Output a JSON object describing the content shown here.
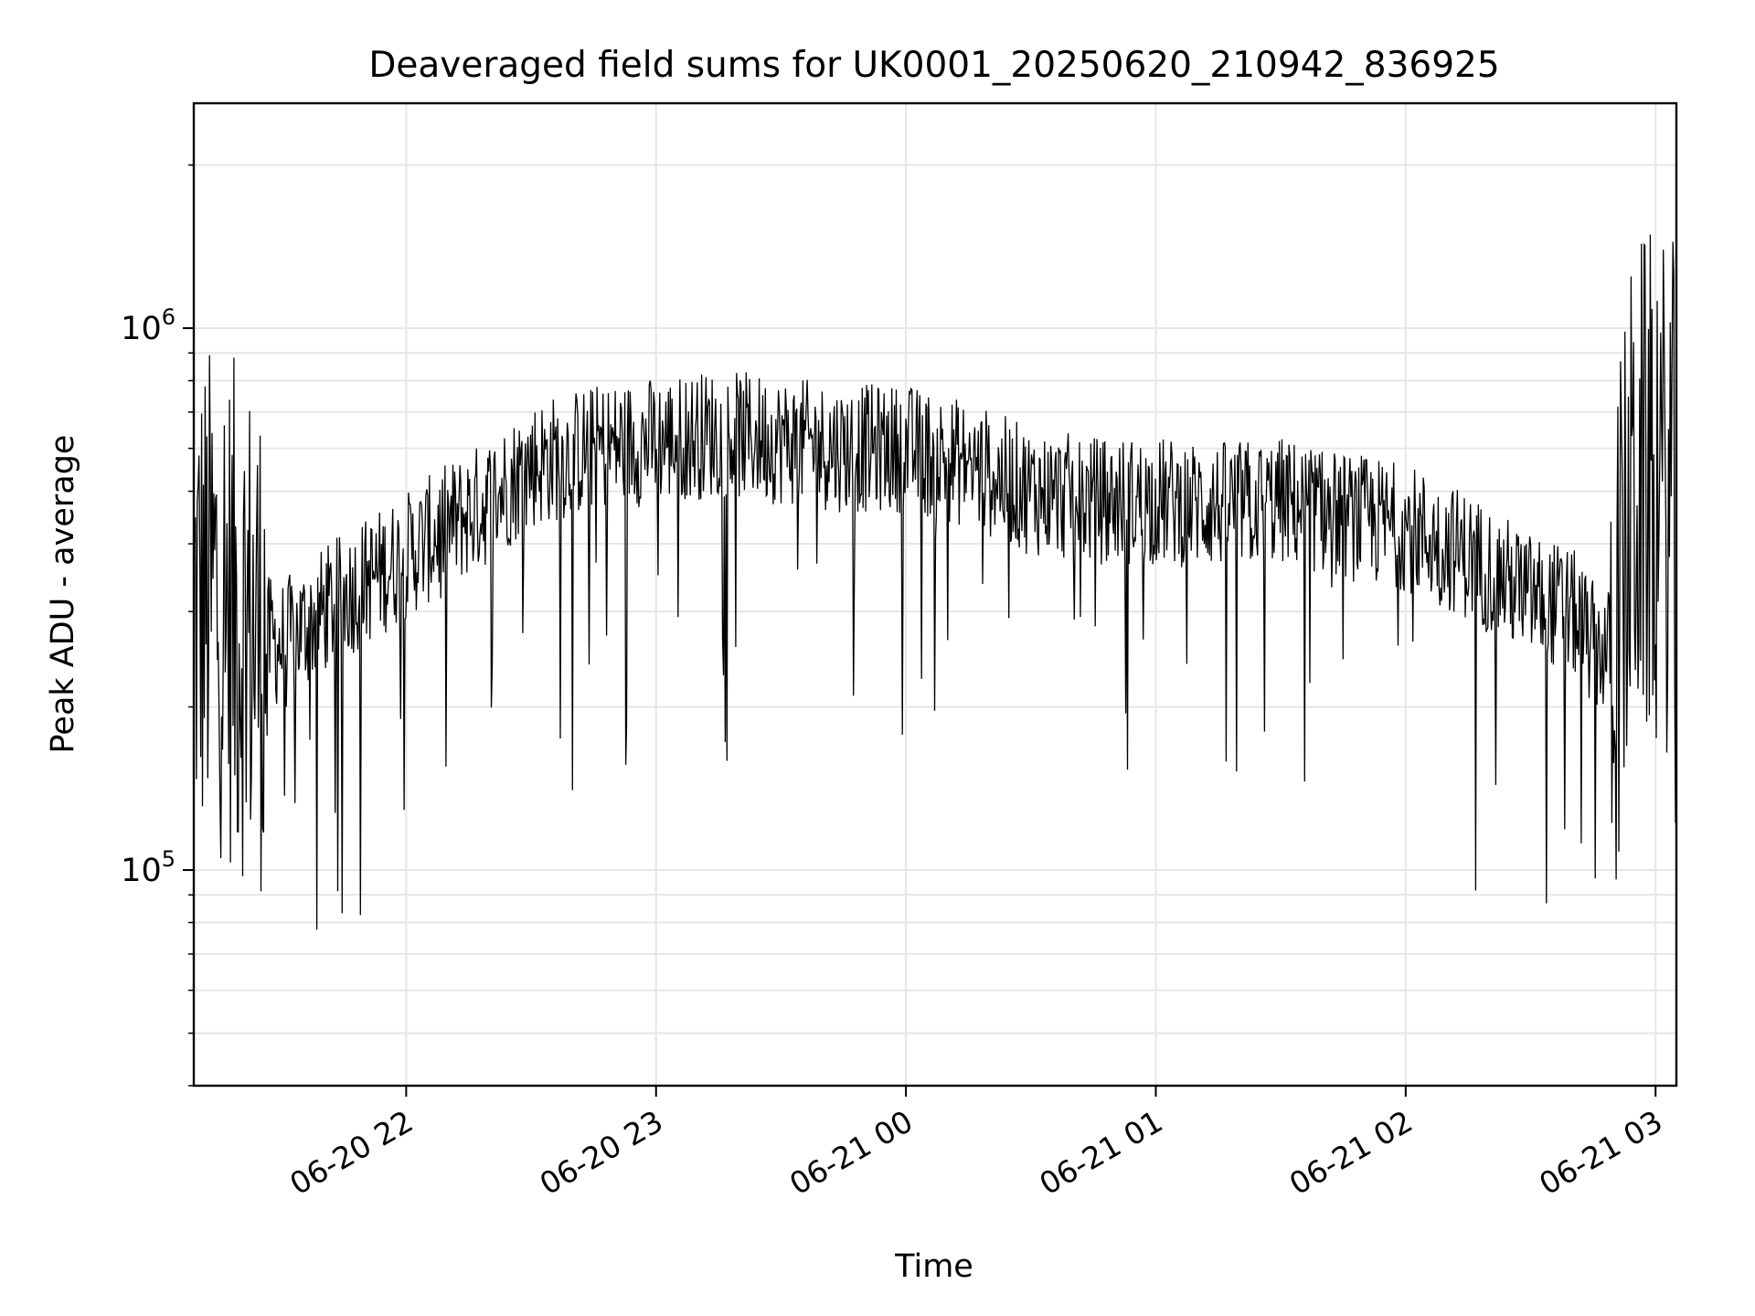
{
  "chart_data": {
    "type": "line",
    "title": "Deaveraged field sums for UK0001_20250620_210942_836925",
    "xlabel": "Time",
    "ylabel": "Peak ADU - average",
    "yscale": "log",
    "grid": true,
    "legend": "none",
    "xlim": [
      "2025-06-20 21:09",
      "2025-06-21 03:05"
    ],
    "ylim": [
      40000,
      2600000
    ],
    "x_ticks": [
      "06-20 22",
      "06-20 23",
      "06-21 00",
      "06-21 01",
      "06-21 02",
      "06-21 03"
    ],
    "x_tick_times": [
      "2025-06-20 22:00",
      "2025-06-20 23:00",
      "2025-06-21 00:00",
      "2025-06-21 01:00",
      "2025-06-21 02:00",
      "2025-06-21 03:00"
    ],
    "y_ticks": [
      {
        "value": 100000,
        "base": "10",
        "exp": "5"
      },
      {
        "value": 1000000,
        "base": "10",
        "exp": "6"
      }
    ],
    "line_color": "#000000",
    "grid_color": "#e6e6e6",
    "series": [
      {
        "x": [
          "2025-06-20 21:09",
          "2025-06-20 21:14",
          "2025-06-20 21:20",
          "2025-06-20 21:25",
          "2025-06-20 21:30",
          "2025-06-20 21:40",
          "2025-06-20 21:50",
          "2025-06-20 22:00",
          "2025-06-20 22:10",
          "2025-06-20 22:20",
          "2025-06-20 22:30",
          "2025-06-20 22:45",
          "2025-06-20 23:00",
          "2025-06-20 23:15",
          "2025-06-20 23:30",
          "2025-06-20 23:45",
          "2025-06-21 00:00",
          "2025-06-21 00:15",
          "2025-06-21 00:30",
          "2025-06-21 00:45",
          "2025-06-21 01:00",
          "2025-06-21 01:15",
          "2025-06-21 01:30",
          "2025-06-21 01:45",
          "2025-06-21 02:00",
          "2025-06-21 02:15",
          "2025-06-21 02:30",
          "2025-06-21 02:40",
          "2025-06-21 02:45",
          "2025-06-21 02:50",
          "2025-06-21 02:55",
          "2025-06-21 03:00",
          "2025-06-21 03:05"
        ],
        "y": [
          300000,
          320000,
          290000,
          270000,
          260000,
          300000,
          340000,
          380000,
          430000,
          480000,
          560000,
          600000,
          620000,
          640000,
          620000,
          600000,
          600000,
          560000,
          500000,
          480000,
          480000,
          470000,
          480000,
          450000,
          430000,
          380000,
          320000,
          300000,
          260000,
          250000,
          500000,
          500000,
          480000
        ]
      }
    ]
  }
}
